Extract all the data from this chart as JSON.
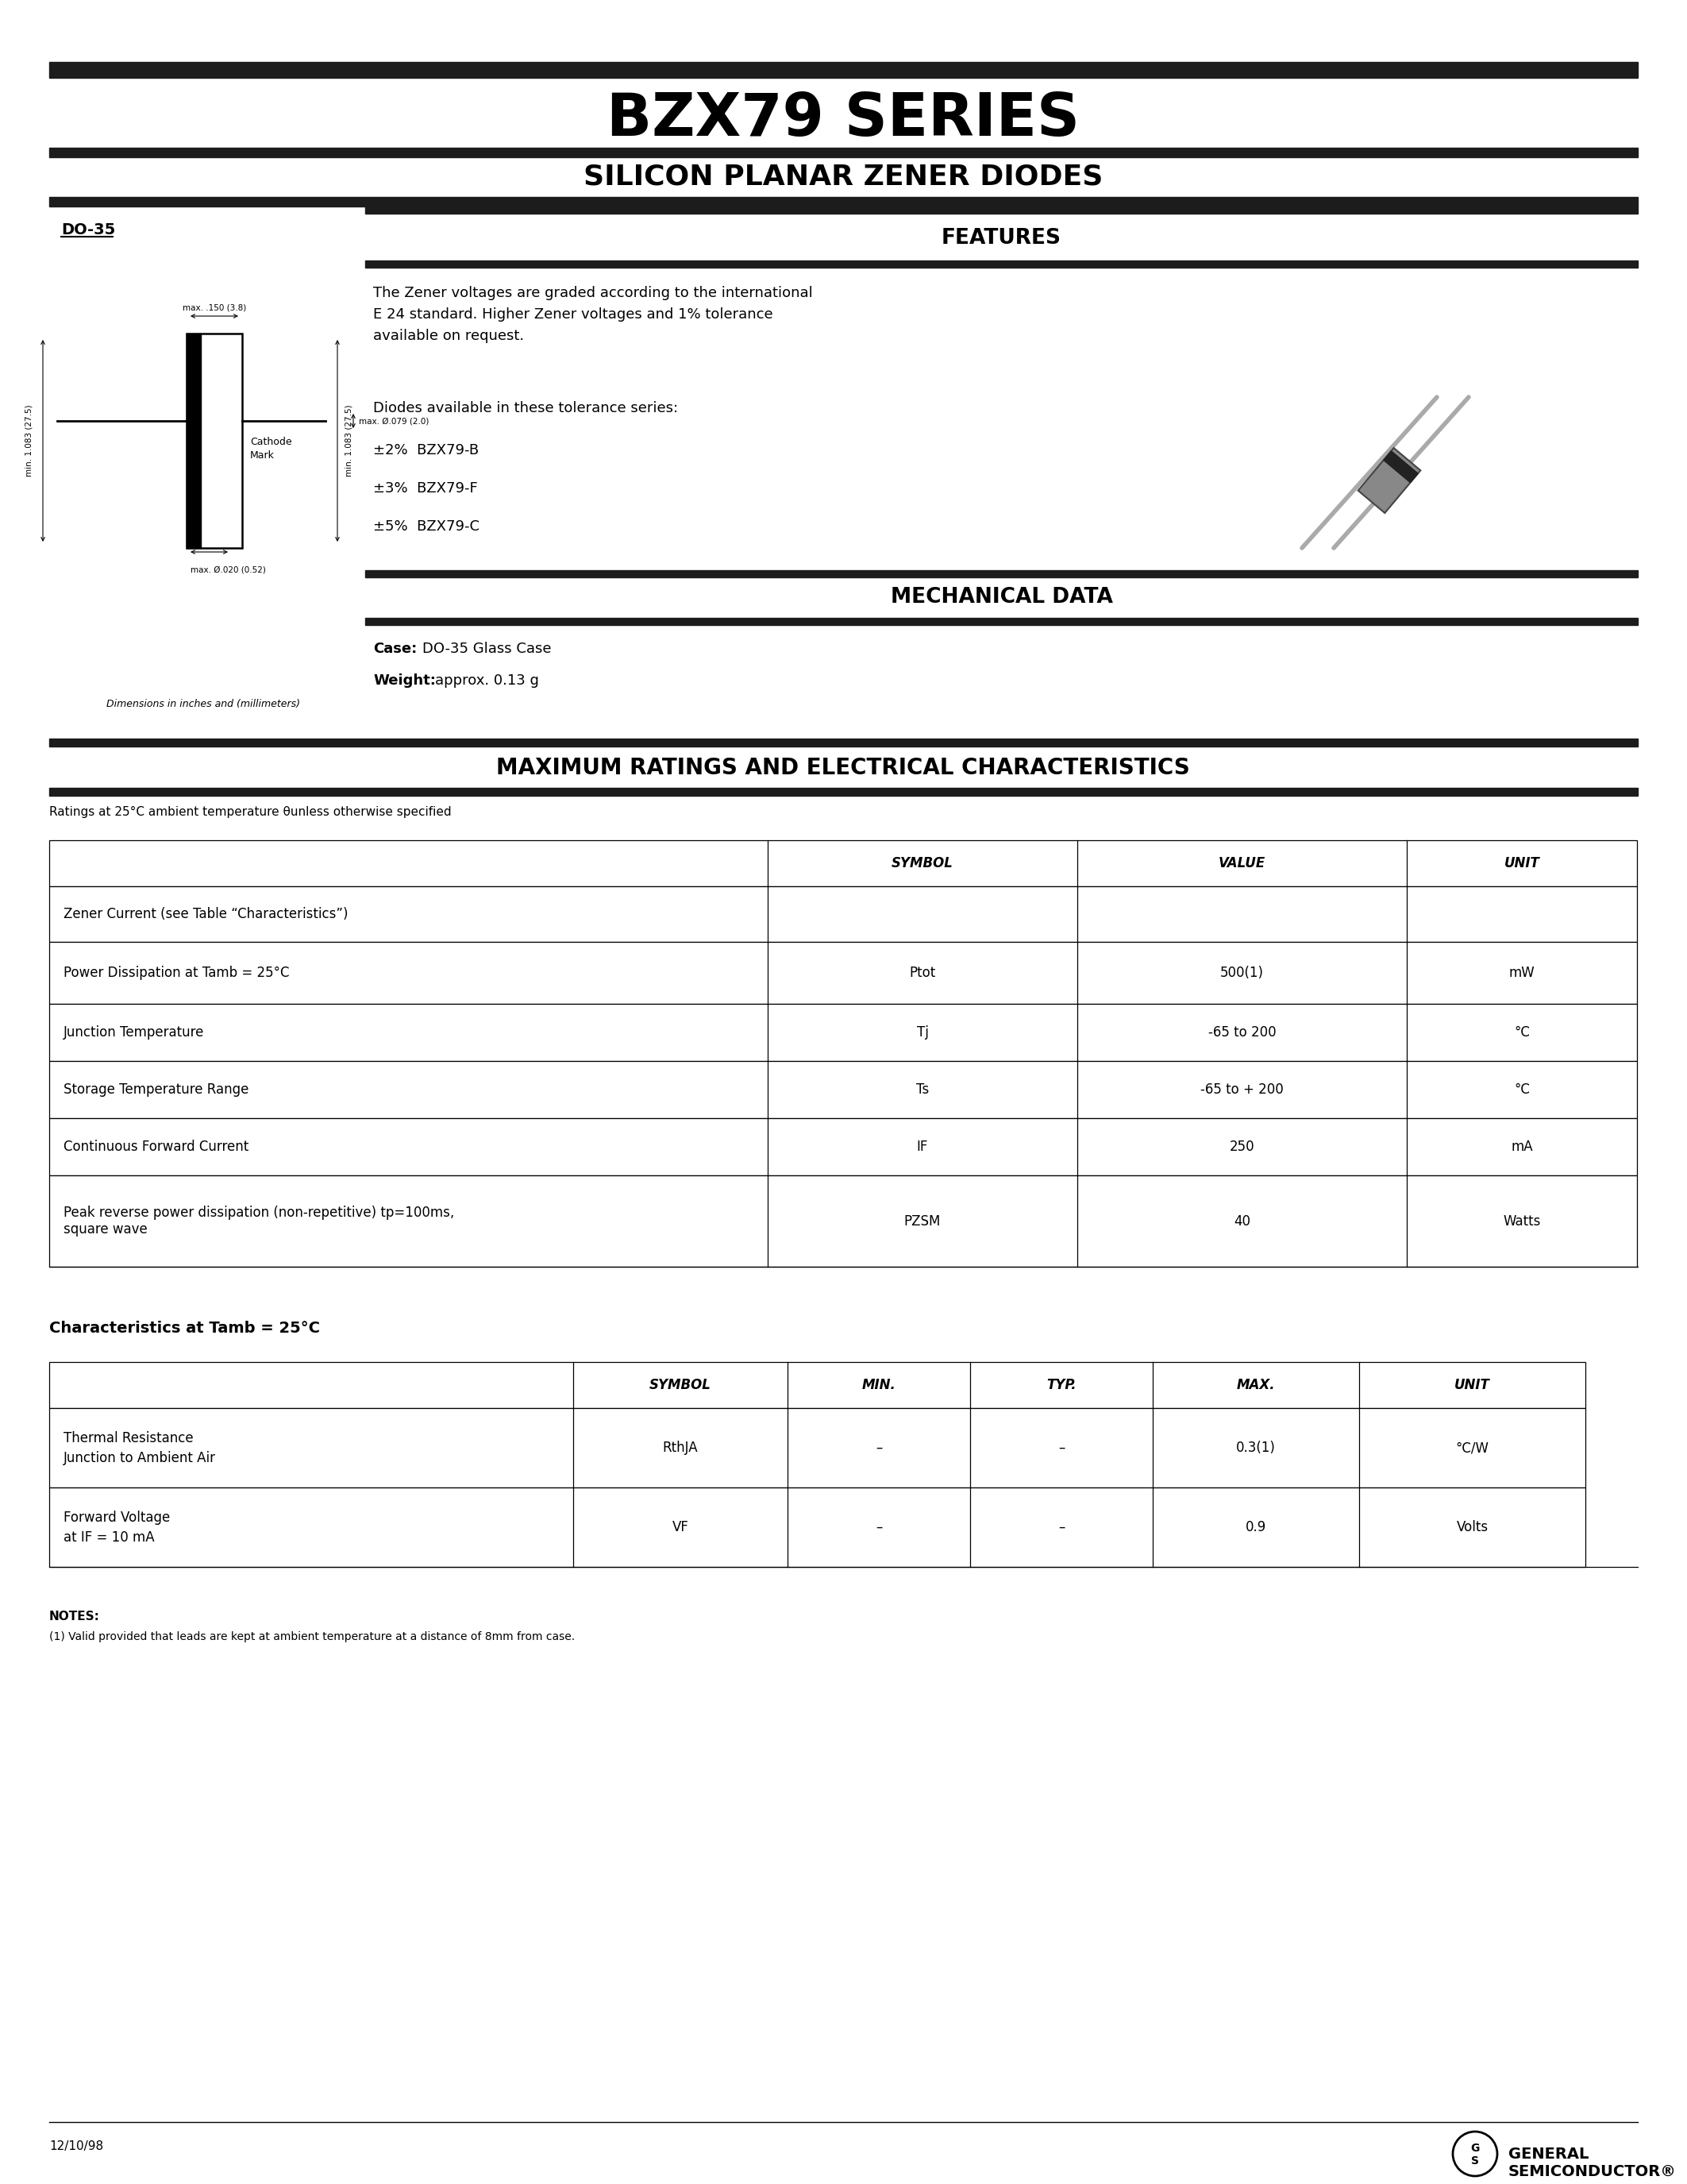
{
  "title": "BZX79 SERIES",
  "subtitle": "SILICON PLANAR ZENER DIODES",
  "do35_label": "DO-35",
  "features_header": "FEATURES",
  "features_text1": "The Zener voltages are graded according to the international\nE 24 standard. Higher Zener voltages and 1% tolerance\navailable on request.",
  "features_text2": "Diodes available in these tolerance series:",
  "tolerance_lines": [
    "±2%  BZX79-B",
    "±3%  BZX79-F",
    "±5%  BZX79-C"
  ],
  "mech_header": "MECHANICAL DATA",
  "mech_case_label": "Case:",
  "mech_case_val": "DO-35 Glass Case",
  "mech_weight_label": "Weight:",
  "mech_weight_val": "approx. 0.13 g",
  "max_ratings_header": "MAXIMUM RATINGS AND ELECTRICAL CHARACTERISTICS",
  "ratings_note": "Ratings at 25°C ambient temperature θunless otherwise specified",
  "t1_headers": [
    "",
    "SYMBOL",
    "VALUE",
    "UNIT"
  ],
  "t1_descs": [
    "Zener Current (see Table “Characteristics”)",
    "Power Dissipation at Tamb = 25°C",
    "Junction Temperature",
    "Storage Temperature Range",
    "Continuous Forward Current",
    "Peak reverse power dissipation (non-repetitive) tp=100ms,\nsquare wave"
  ],
  "t1_symbols": [
    "",
    "Ptot",
    "Tj",
    "Ts",
    "IF",
    "PZSM"
  ],
  "t1_values": [
    "",
    "500(1)",
    "-65 to 200",
    "-65 to + 200",
    "250",
    "40"
  ],
  "t1_units": [
    "",
    "mW",
    "°C",
    "°C",
    "mA",
    "Watts"
  ],
  "char_header": "Characteristics at Tamb = 25°C",
  "t2_headers": [
    "",
    "SYMBOL",
    "MIN.",
    "TYP.",
    "MAX.",
    "UNIT"
  ],
  "t2_descs": [
    "Thermal Resistance\nJunction to Ambient Air",
    "Forward Voltage\nat IF = 10 mA"
  ],
  "t2_symbols": [
    "RthJA",
    "VF"
  ],
  "t2_min": [
    "–",
    "–"
  ],
  "t2_typ": [
    "–",
    "–"
  ],
  "t2_max": [
    "0.3(1)",
    "0.9"
  ],
  "t2_units": [
    "°C/W",
    "Volts"
  ],
  "notes_header": "NOTES:",
  "notes_text": "(1) Valid provided that leads are kept at ambient temperature at a distance of 8mm from case.",
  "footer_date": "12/10/98",
  "bar_color": "#1c1c1c",
  "bg_color": "#ffffff"
}
